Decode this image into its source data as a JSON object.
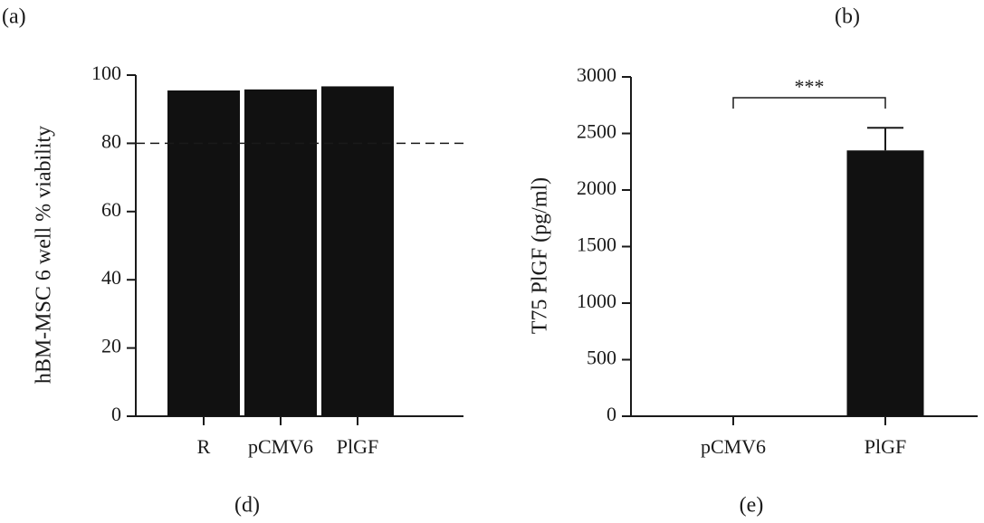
{
  "chart_data": [
    {
      "type": "bar",
      "panel_label": "(a)",
      "caption": "(d)",
      "ylabel": "hBM-MSC 6 well % viability",
      "categories": [
        "R",
        "pCMV6",
        "PlGF"
      ],
      "values": [
        95.5,
        95.8,
        96.7
      ],
      "color": "#111111",
      "ylim": [
        0,
        100
      ],
      "yticks": [
        0,
        20,
        40,
        60,
        80,
        100
      ],
      "reference_line": 80
    },
    {
      "type": "bar",
      "panel_label": "(b)",
      "caption": "(e)",
      "ylabel": "T75 PlGF (pg/ml)",
      "categories": [
        "pCMV6",
        "PlGF"
      ],
      "values": [
        0,
        2350
      ],
      "errors": [
        0,
        200
      ],
      "color": "#111111",
      "ylim": [
        0,
        3000
      ],
      "yticks": [
        0,
        500,
        1000,
        1500,
        2000,
        2500,
        3000
      ],
      "annotation": "***"
    }
  ]
}
